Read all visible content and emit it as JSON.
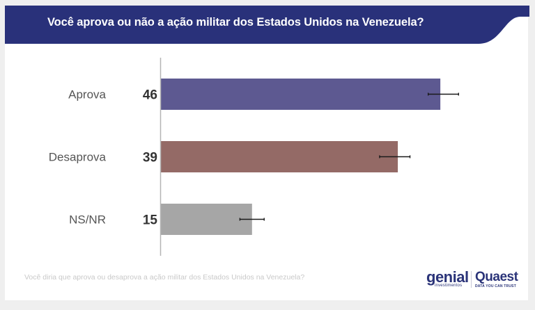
{
  "header": {
    "title": "Você aprova ou não a ação militar dos Estados Unidos na Venezuela?",
    "color": "#29317a"
  },
  "chart_data": {
    "type": "bar",
    "orientation": "horizontal",
    "title": "Você aprova ou não a ação militar dos Estados Unidos na Venezuela?",
    "xlabel": "",
    "ylabel": "",
    "xlim": [
      0,
      50
    ],
    "grid": false,
    "categories": [
      "Aprova",
      "Desaprova",
      "NS/NR"
    ],
    "values": [
      46,
      39,
      15
    ],
    "value_labels": [
      "46",
      "39",
      "15"
    ],
    "error_bars": [
      [
        44,
        49
      ],
      [
        36,
        41
      ],
      [
        13,
        17
      ]
    ],
    "colors": [
      "#5d5991",
      "#946a66",
      "#a6a6a6"
    ],
    "legend": "none"
  },
  "footer": {
    "question_text": "Você diria que aprova ou desaprova a ação militar dos Estados Unidos na Venezuela?",
    "logos": {
      "genial": "genial",
      "genial_sub": "investimentos",
      "quaest": "Quaest",
      "quaest_sub": "DATA YOU CAN TRUST"
    }
  }
}
